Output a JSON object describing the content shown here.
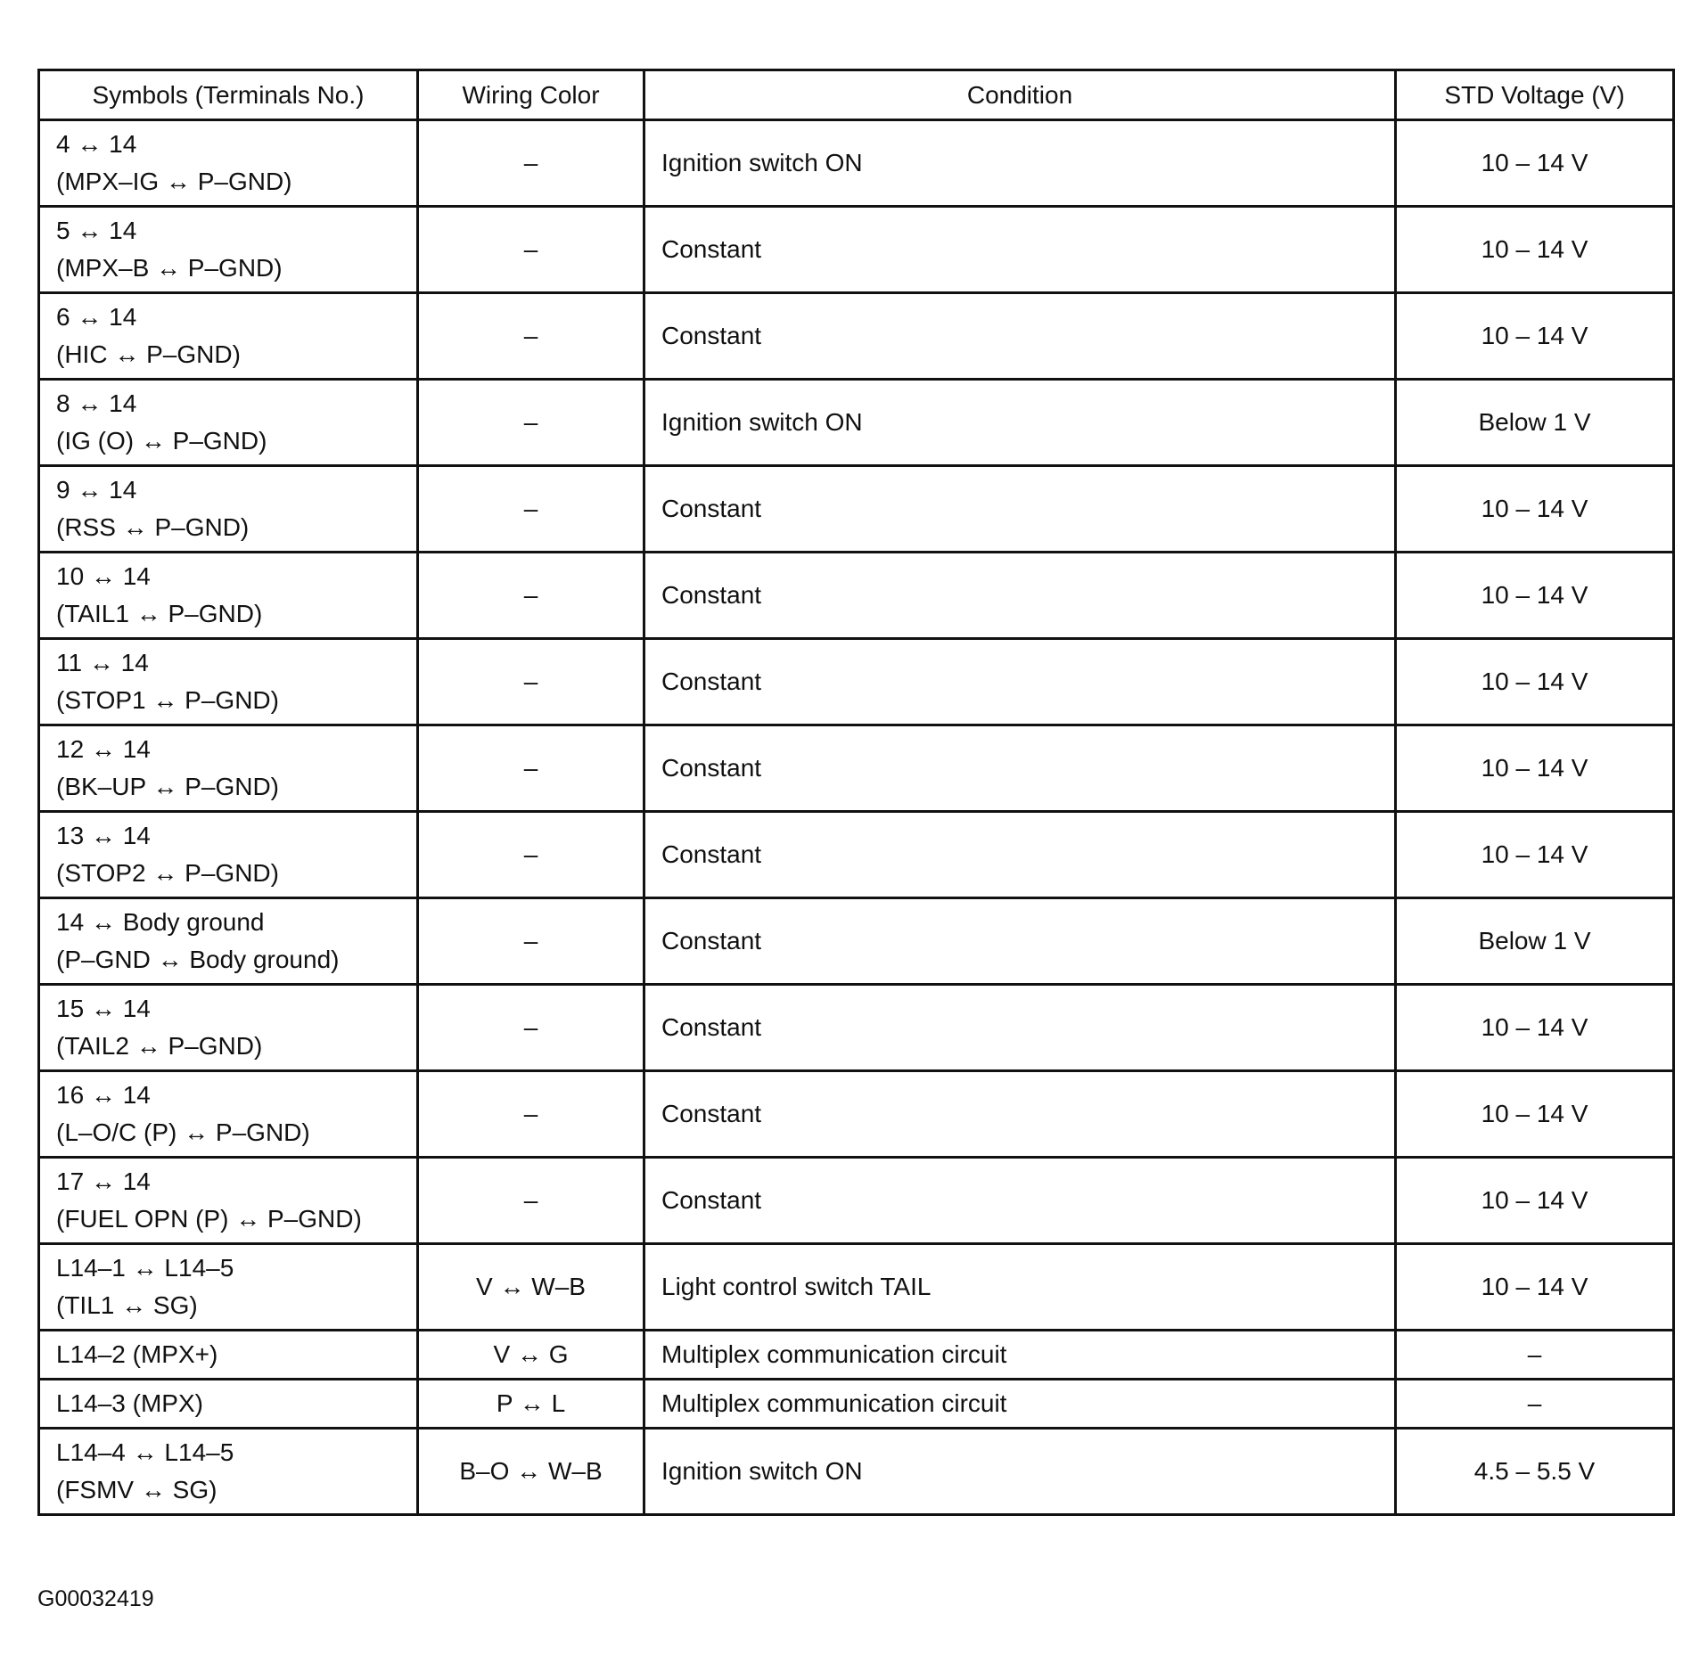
{
  "table": {
    "headers": [
      "Symbols (Terminals No.)",
      "Wiring Color",
      "Condition",
      "STD Voltage (V)"
    ],
    "rows": [
      {
        "symbol": [
          "4 ↔ 14",
          "(MPX–IG ↔ P–GND)"
        ],
        "wiring": "–",
        "condition": "Ignition switch ON",
        "voltage": "10 – 14 V"
      },
      {
        "symbol": [
          "5 ↔ 14",
          "(MPX–B ↔ P–GND)"
        ],
        "wiring": "–",
        "condition": "Constant",
        "voltage": "10 – 14 V"
      },
      {
        "symbol": [
          "6 ↔ 14",
          "(HIC ↔ P–GND)"
        ],
        "wiring": "–",
        "condition": "Constant",
        "voltage": "10 – 14 V"
      },
      {
        "symbol": [
          "8 ↔ 14",
          "(IG (O) ↔ P–GND)"
        ],
        "wiring": "–",
        "condition": "Ignition switch ON",
        "voltage": "Below 1 V"
      },
      {
        "symbol": [
          "9 ↔ 14",
          "(RSS ↔ P–GND)"
        ],
        "wiring": "–",
        "condition": "Constant",
        "voltage": "10 – 14 V"
      },
      {
        "symbol": [
          "10 ↔ 14",
          "(TAIL1 ↔ P–GND)"
        ],
        "wiring": "–",
        "condition": "Constant",
        "voltage": "10 – 14 V"
      },
      {
        "symbol": [
          "11 ↔ 14",
          "(STOP1 ↔ P–GND)"
        ],
        "wiring": "–",
        "condition": "Constant",
        "voltage": "10 – 14 V"
      },
      {
        "symbol": [
          "12 ↔ 14",
          "(BK–UP ↔ P–GND)"
        ],
        "wiring": "–",
        "condition": "Constant",
        "voltage": "10 – 14 V"
      },
      {
        "symbol": [
          "13 ↔ 14",
          "(STOP2 ↔ P–GND)"
        ],
        "wiring": "–",
        "condition": "Constant",
        "voltage": "10 – 14 V"
      },
      {
        "symbol": [
          "14 ↔ Body ground",
          "(P–GND ↔ Body ground)"
        ],
        "wiring": "–",
        "condition": "Constant",
        "voltage": "Below 1 V"
      },
      {
        "symbol": [
          "15 ↔ 14",
          "(TAIL2 ↔ P–GND)"
        ],
        "wiring": "–",
        "condition": "Constant",
        "voltage": "10 – 14 V"
      },
      {
        "symbol": [
          "16 ↔ 14",
          "(L–O/C (P) ↔ P–GND)"
        ],
        "wiring": "–",
        "condition": "Constant",
        "voltage": "10 – 14 V"
      },
      {
        "symbol": [
          "17 ↔ 14",
          "(FUEL OPN (P) ↔ P–GND)"
        ],
        "wiring": "–",
        "condition": "Constant",
        "voltage": "10 – 14 V"
      },
      {
        "symbol": [
          "L14–1 ↔ L14–5",
          "(TIL1 ↔ SG)"
        ],
        "wiring": "V ↔ W–B",
        "condition": "Light control switch TAIL",
        "voltage": "10 – 14 V"
      },
      {
        "symbol": [
          "L14–2 (MPX+)"
        ],
        "wiring": "V ↔ G",
        "condition": "Multiplex communication circuit",
        "voltage": "–"
      },
      {
        "symbol": [
          "L14–3 (MPX)"
        ],
        "wiring": "P ↔ L",
        "condition": "Multiplex communication circuit",
        "voltage": "–"
      },
      {
        "symbol": [
          "L14–4 ↔ L14–5",
          "(FSMV ↔ SG)"
        ],
        "wiring": "B–O ↔ W–B",
        "condition": "Ignition switch ON",
        "voltage": "4.5 – 5.5 V"
      }
    ]
  },
  "figure_code": "G00032419"
}
